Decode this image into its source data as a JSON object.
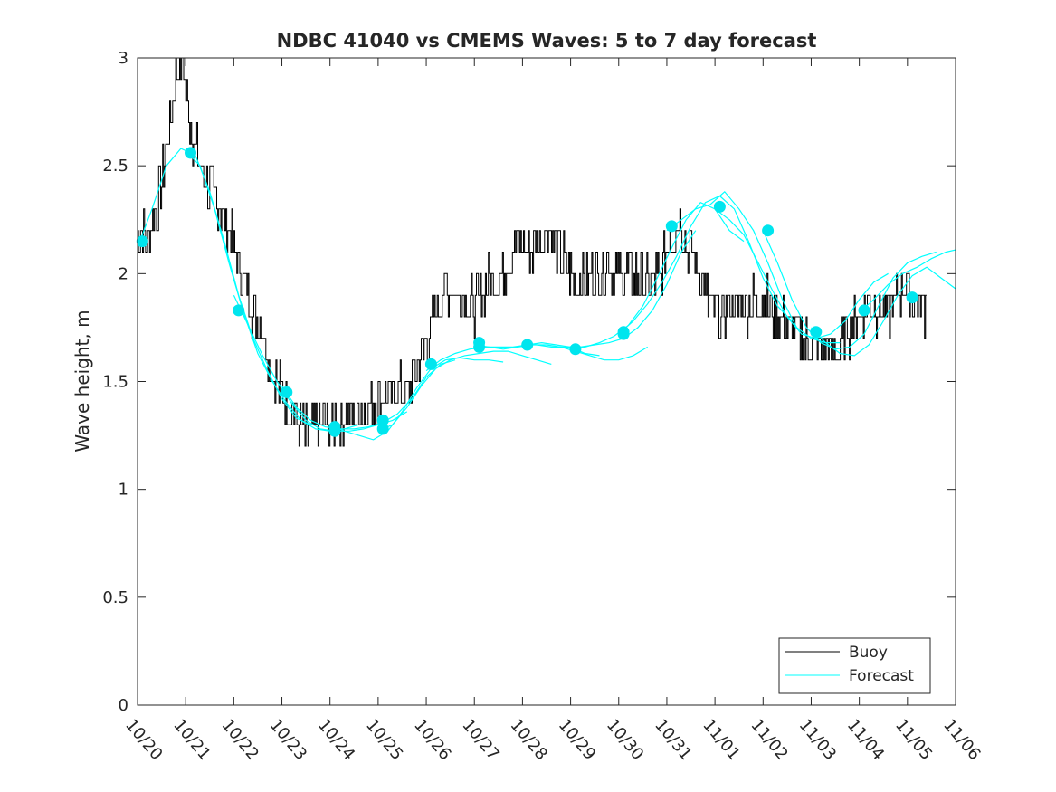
{
  "chart_data": {
    "type": "line",
    "title": "NDBC 41040 vs CMEMS Waves: 5 to 7 day forecast",
    "xlabel": "",
    "ylabel": "Wave height, m",
    "xlim": [
      0,
      17
    ],
    "ylim": [
      0,
      3
    ],
    "x_ticks": [
      "10/20",
      "10/21",
      "10/22",
      "10/23",
      "10/24",
      "10/25",
      "10/26",
      "10/27",
      "10/28",
      "10/29",
      "10/30",
      "10/31",
      "11/01",
      "11/02",
      "11/03",
      "11/04",
      "11/05",
      "11/06"
    ],
    "y_ticks": [
      "0",
      "0.5",
      "1",
      "1.5",
      "2",
      "2.5",
      "3"
    ],
    "y_tick_values": [
      0,
      0.5,
      1,
      1.5,
      2,
      2.5,
      3
    ],
    "legend": {
      "position": "bottom-right",
      "entries": [
        "Buoy",
        "Forecast"
      ]
    },
    "colors": {
      "buoy": "#000000",
      "forecast": "#00ffff",
      "marker": "#00e5ee",
      "axis": "#262626"
    },
    "series": [
      {
        "name": "Buoy",
        "x_unit": "days since 10/20 00:00",
        "x": [
          0,
          0.25,
          0.5,
          0.7,
          0.8,
          0.95,
          1.1,
          1.3,
          1.5,
          1.75,
          2.0,
          2.2,
          2.4,
          2.6,
          2.8,
          3.0,
          3.3,
          3.5,
          3.7,
          4.0,
          4.3,
          4.6,
          5.0,
          5.3,
          5.6,
          5.9,
          6.1,
          6.3,
          6.5,
          6.7,
          7.0,
          7.3,
          7.6,
          7.9,
          8.2,
          8.5,
          8.8,
          9.1,
          9.4,
          9.6,
          9.8,
          10.0,
          10.3,
          10.6,
          10.9,
          11.1,
          11.3,
          11.5,
          11.7,
          11.9,
          12.1,
          12.4,
          12.7,
          13.0,
          13.3,
          13.6,
          13.8,
          14.0,
          14.2,
          14.4,
          14.6,
          14.8,
          15.0,
          15.2,
          15.4,
          15.6,
          15.8,
          16.0,
          16.2,
          16.4
        ],
        "y": [
          2.2,
          2.15,
          2.4,
          2.7,
          2.9,
          3.0,
          2.7,
          2.5,
          2.4,
          2.3,
          2.15,
          2.0,
          1.85,
          1.75,
          1.55,
          1.45,
          1.35,
          1.25,
          1.3,
          1.3,
          1.35,
          1.35,
          1.4,
          1.45,
          1.45,
          1.6,
          1.75,
          1.9,
          1.95,
          1.9,
          1.85,
          1.95,
          2.0,
          2.15,
          2.1,
          2.2,
          2.1,
          1.95,
          2.0,
          2.0,
          2.05,
          2.0,
          2.0,
          1.95,
          2.0,
          2.2,
          2.25,
          2.1,
          2.0,
          1.85,
          1.8,
          1.85,
          1.85,
          1.9,
          1.8,
          1.75,
          1.7,
          1.65,
          1.65,
          1.65,
          1.65,
          1.75,
          1.8,
          1.85,
          1.85,
          1.8,
          1.9,
          1.95,
          1.85,
          1.85
        ]
      },
      {
        "name": "Forecast",
        "runs": [
          {
            "x": [
              0,
              0.3,
              0.6,
              0.9,
              1.2,
              1.5,
              1.8,
              2.1,
              2.4,
              2.7,
              3.0,
              3.3,
              3.6
            ],
            "y": [
              2.12,
              2.3,
              2.5,
              2.58,
              2.55,
              2.38,
              2.15,
              1.9,
              1.7,
              1.55,
              1.42,
              1.33,
              1.3
            ]
          },
          {
            "x": [
              1.0,
              1.3,
              1.6,
              1.9,
              2.2,
              2.5,
              2.8,
              3.1,
              3.4,
              3.7,
              4.0,
              4.3,
              4.6
            ],
            "y": [
              2.57,
              2.5,
              2.3,
              2.05,
              1.82,
              1.63,
              1.5,
              1.4,
              1.32,
              1.28,
              1.27,
              1.28,
              1.3
            ]
          },
          {
            "x": [
              2.0,
              2.3,
              2.6,
              2.9,
              3.2,
              3.5,
              3.8,
              4.1,
              4.4,
              4.7,
              5.0,
              5.3,
              5.6
            ],
            "y": [
              1.9,
              1.76,
              1.62,
              1.5,
              1.4,
              1.32,
              1.28,
              1.27,
              1.27,
              1.28,
              1.3,
              1.32,
              1.36
            ]
          },
          {
            "x": [
              3.0,
              3.3,
              3.6,
              3.9,
              4.2,
              4.5,
              4.8,
              5.1,
              5.4,
              5.7,
              6.0,
              6.3,
              6.6
            ],
            "y": [
              1.48,
              1.38,
              1.32,
              1.29,
              1.28,
              1.28,
              1.29,
              1.31,
              1.35,
              1.42,
              1.52,
              1.58,
              1.6
            ]
          },
          {
            "x": [
              4.0,
              4.3,
              4.6,
              4.9,
              5.2,
              5.5,
              5.8,
              6.1,
              6.4,
              6.7,
              7.0,
              7.3,
              7.6
            ],
            "y": [
              1.3,
              1.27,
              1.25,
              1.23,
              1.27,
              1.36,
              1.47,
              1.56,
              1.6,
              1.61,
              1.6,
              1.6,
              1.59
            ]
          },
          {
            "x": [
              5.0,
              5.3,
              5.6,
              5.9,
              6.2,
              6.5,
              6.8,
              7.1,
              7.4,
              7.7,
              8.0,
              8.3,
              8.6
            ],
            "y": [
              1.27,
              1.3,
              1.38,
              1.48,
              1.56,
              1.6,
              1.62,
              1.63,
              1.64,
              1.64,
              1.62,
              1.6,
              1.58
            ]
          },
          {
            "x": [
              6.0,
              6.3,
              6.6,
              6.9,
              7.2,
              7.5,
              7.8,
              8.1,
              8.4,
              8.7,
              9.0,
              9.3,
              9.6
            ],
            "y": [
              1.55,
              1.6,
              1.63,
              1.65,
              1.66,
              1.66,
              1.66,
              1.67,
              1.68,
              1.67,
              1.66,
              1.63,
              1.62
            ]
          },
          {
            "x": [
              7.0,
              7.3,
              7.6,
              7.9,
              8.2,
              8.5,
              8.8,
              9.1,
              9.4,
              9.7,
              10.0,
              10.3,
              10.6
            ],
            "y": [
              1.67,
              1.66,
              1.65,
              1.66,
              1.67,
              1.67,
              1.66,
              1.64,
              1.62,
              1.6,
              1.6,
              1.62,
              1.66
            ]
          },
          {
            "x": [
              8.0,
              8.3,
              8.6,
              8.9,
              9.2,
              9.5,
              9.8,
              10.1,
              10.4,
              10.7,
              11.0,
              11.3,
              11.6
            ],
            "y": [
              1.68,
              1.67,
              1.66,
              1.66,
              1.66,
              1.67,
              1.68,
              1.7,
              1.75,
              1.83,
              1.95,
              2.1,
              2.2
            ]
          },
          {
            "x": [
              9.0,
              9.3,
              9.6,
              9.9,
              10.2,
              10.5,
              10.8,
              11.1,
              11.4,
              11.7,
              12.0,
              12.3,
              12.6
            ],
            "y": [
              1.65,
              1.66,
              1.68,
              1.71,
              1.76,
              1.85,
              1.98,
              2.12,
              2.25,
              2.33,
              2.3,
              2.2,
              2.15
            ]
          },
          {
            "x": [
              10.0,
              10.3,
              10.6,
              10.9,
              11.2,
              11.5,
              11.8,
              12.1,
              12.4,
              12.7,
              13.0,
              13.3,
              13.6
            ],
            "y": [
              1.72,
              1.78,
              1.86,
              1.96,
              2.08,
              2.22,
              2.33,
              2.36,
              2.3,
              2.15,
              1.98,
              1.85,
              1.78
            ]
          },
          {
            "x": [
              11.0,
              11.3,
              11.6,
              11.9,
              12.2,
              12.5,
              12.8,
              13.1,
              13.4,
              13.7,
              14.0,
              14.3,
              14.6
            ],
            "y": [
              2.2,
              2.25,
              2.3,
              2.32,
              2.38,
              2.3,
              2.2,
              2.05,
              1.88,
              1.75,
              1.7,
              1.68,
              1.68
            ]
          },
          {
            "x": [
              12.0,
              12.3,
              12.6,
              12.9,
              13.2,
              13.5,
              13.8,
              14.1,
              14.4,
              14.7,
              15.0,
              15.3,
              15.6
            ],
            "y": [
              2.3,
              2.25,
              2.18,
              2.05,
              1.92,
              1.8,
              1.72,
              1.7,
              1.72,
              1.78,
              1.88,
              1.96,
              2.0
            ]
          },
          {
            "x": [
              13.0,
              13.3,
              13.6,
              13.9,
              14.2,
              14.5,
              14.8,
              15.1,
              15.4,
              15.7,
              16.0,
              16.3,
              16.6
            ],
            "y": [
              2.2,
              2.05,
              1.88,
              1.75,
              1.68,
              1.65,
              1.66,
              1.72,
              1.85,
              1.98,
              2.05,
              2.08,
              2.1
            ]
          },
          {
            "x": [
              14.0,
              14.3,
              14.6,
              14.9,
              15.2,
              15.5,
              15.8,
              16.1,
              16.4,
              16.7,
              17.0
            ],
            "y": [
              1.75,
              1.68,
              1.63,
              1.62,
              1.67,
              1.78,
              1.9,
              1.99,
              2.03,
              1.98,
              1.93
            ]
          },
          {
            "x": [
              15.0,
              15.3,
              15.6,
              15.9,
              16.2,
              16.5,
              16.8,
              17.0
            ],
            "y": [
              1.82,
              1.88,
              1.95,
              2.0,
              2.03,
              2.07,
              2.1,
              2.11
            ]
          }
        ]
      }
    ],
    "markers": {
      "name": "Forecast nowcast points",
      "x": [
        0.1,
        1.1,
        2.1,
        3.1,
        4.1,
        4.1,
        5.1,
        5.1,
        6.1,
        7.1,
        7.1,
        8.1,
        9.1,
        10.1,
        10.1,
        11.1,
        12.1,
        13.1,
        14.1,
        15.1,
        16.1
      ],
      "y": [
        2.15,
        2.56,
        1.83,
        1.45,
        1.27,
        1.29,
        1.28,
        1.32,
        1.58,
        1.68,
        1.66,
        1.67,
        1.65,
        1.72,
        1.73,
        2.22,
        2.31,
        2.2,
        1.73,
        1.83,
        1.89
      ]
    }
  }
}
